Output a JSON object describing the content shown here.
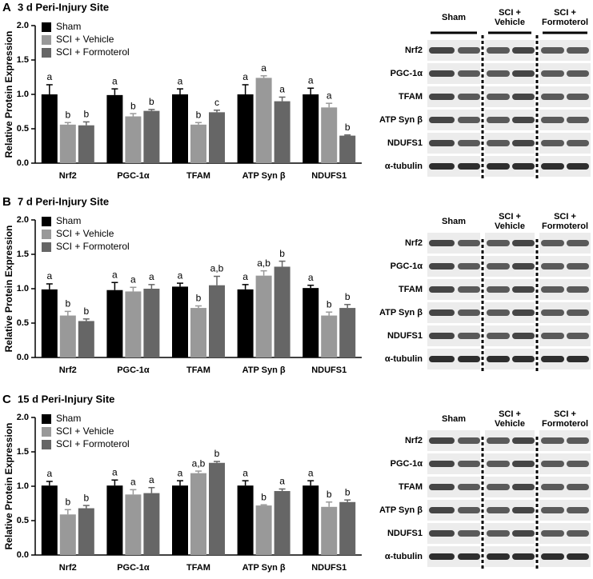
{
  "chart_data": [
    {
      "type": "bar",
      "label": "A",
      "title": "3 d Peri-Injury Site",
      "y_label": "Relative Protein Expression",
      "categories": [
        "Nrf2",
        "PGC-1α",
        "TFAM",
        "ATP Syn β",
        "NDUFS1"
      ],
      "series": [
        {
          "name": "Sham",
          "color": "#000000",
          "values": [
            1.0,
            0.99,
            1.0,
            1.0,
            1.0
          ],
          "errors": [
            0.14,
            0.09,
            0.08,
            0.14,
            0.09
          ],
          "letters": [
            "a",
            "a",
            "a",
            "a",
            "a"
          ]
        },
        {
          "name": "SCI + Vehicle",
          "color": "#999999",
          "values": [
            0.56,
            0.68,
            0.56,
            1.24,
            0.81
          ],
          "errors": [
            0.03,
            0.04,
            0.03,
            0.03,
            0.06
          ],
          "letters": [
            "b",
            "b",
            "b",
            "a",
            "a"
          ]
        },
        {
          "name": "SCI + Formoterol",
          "color": "#666666",
          "values": [
            0.55,
            0.76,
            0.74,
            0.9,
            0.4
          ],
          "errors": [
            0.05,
            0.02,
            0.03,
            0.06,
            0.01
          ],
          "letters": [
            "b",
            "b",
            "c",
            "a",
            "b"
          ]
        }
      ],
      "ylim": [
        0,
        2
      ],
      "yticks": [
        {
          "value": 0,
          "label": "0.0"
        },
        0.5,
        {
          "value": 1,
          "label": "1.0"
        },
        1.5,
        {
          "value": 2,
          "label": "2.0"
        }
      ],
      "legend": "upper left"
    },
    {
      "type": "bar",
      "label": "B",
      "title": "7 d Peri-Injury Site",
      "y_label": "Relative Protein Expression",
      "categories": [
        "Nrf2",
        "PGC-1α",
        "TFAM",
        "ATP Syn β",
        "NDUFS1"
      ],
      "series": [
        {
          "name": "Sham",
          "color": "#000000",
          "values": [
            0.99,
            0.98,
            1.03,
            0.99,
            1.01
          ],
          "errors": [
            0.08,
            0.11,
            0.05,
            0.07,
            0.04
          ],
          "letters": [
            "a",
            "a",
            "a",
            "a",
            "a"
          ]
        },
        {
          "name": "SCI + Vehicle",
          "color": "#999999",
          "values": [
            0.61,
            0.96,
            0.72,
            1.19,
            0.61
          ],
          "errors": [
            0.06,
            0.06,
            0.03,
            0.07,
            0.05
          ],
          "letters": [
            "b",
            "a",
            "b",
            "a,b",
            "b"
          ]
        },
        {
          "name": "SCI + Formoterol",
          "color": "#666666",
          "values": [
            0.53,
            1.0,
            1.05,
            1.32,
            0.72
          ],
          "errors": [
            0.03,
            0.06,
            0.13,
            0.08,
            0.05
          ],
          "letters": [
            "b",
            "a",
            "a,b",
            "b",
            "b"
          ]
        }
      ],
      "ylim": [
        0,
        2
      ],
      "yticks": [
        {
          "value": 0,
          "label": "0.0"
        },
        0.5,
        {
          "value": 1,
          "label": "1.0"
        },
        1.5,
        {
          "value": 2,
          "label": "2.0"
        }
      ],
      "legend": "upper left"
    },
    {
      "type": "bar",
      "label": "C",
      "title": "15 d Peri-Injury Site",
      "y_label": "Relative Protein Expression",
      "categories": [
        "Nrf2",
        "PGC-1α",
        "TFAM",
        "ATP Syn β",
        "NDUFS1"
      ],
      "series": [
        {
          "name": "Sham",
          "color": "#000000",
          "values": [
            1.01,
            1.01,
            1.01,
            1.01,
            1.01
          ],
          "errors": [
            0.06,
            0.08,
            0.07,
            0.07,
            0.07
          ],
          "letters": [
            "a",
            "a",
            "a",
            "a",
            "a"
          ]
        },
        {
          "name": "SCI + Vehicle",
          "color": "#999999",
          "values": [
            0.59,
            0.88,
            1.19,
            0.72,
            0.7
          ],
          "errors": [
            0.07,
            0.07,
            0.03,
            0.01,
            0.07
          ],
          "letters": [
            "b",
            "a",
            "a,b",
            "b",
            "b"
          ]
        },
        {
          "name": "SCI + Formoterol",
          "color": "#666666",
          "values": [
            0.68,
            0.9,
            1.34,
            0.93,
            0.77
          ],
          "errors": [
            0.04,
            0.08,
            0.02,
            0.03,
            0.03
          ],
          "letters": [
            "b",
            "a",
            "b",
            "a",
            "b"
          ]
        }
      ],
      "ylim": [
        0,
        2
      ],
      "yticks": [
        {
          "value": 0,
          "label": "0.0"
        },
        0.5,
        {
          "value": 1,
          "label": "1.0"
        },
        1.5,
        {
          "value": 2,
          "label": "2.0"
        }
      ],
      "legend": "upper left"
    }
  ],
  "blots": [
    {
      "groups": [
        "Sham",
        "SCI + Vehicle",
        "SCI + Formoterol"
      ],
      "rows": [
        "Nrf2",
        "PGC-1α",
        "TFAM",
        "ATP Syn β",
        "NDUFS1",
        "α-tubulin"
      ]
    },
    {
      "groups": [
        "Sham",
        "SCI + Vehicle",
        "SCI + Formoterol"
      ],
      "rows": [
        "Nrf2",
        "PGC-1α",
        "TFAM",
        "ATP Syn β",
        "NDUFS1",
        "α-tubulin"
      ]
    },
    {
      "groups": [
        "Sham",
        "SCI + Vehicle",
        "SCI + Formoterol"
      ],
      "rows": [
        "Nrf2",
        "PGC-1α",
        "TFAM",
        "ATP Syn β",
        "NDUFS1",
        "α-tubulin"
      ]
    }
  ]
}
